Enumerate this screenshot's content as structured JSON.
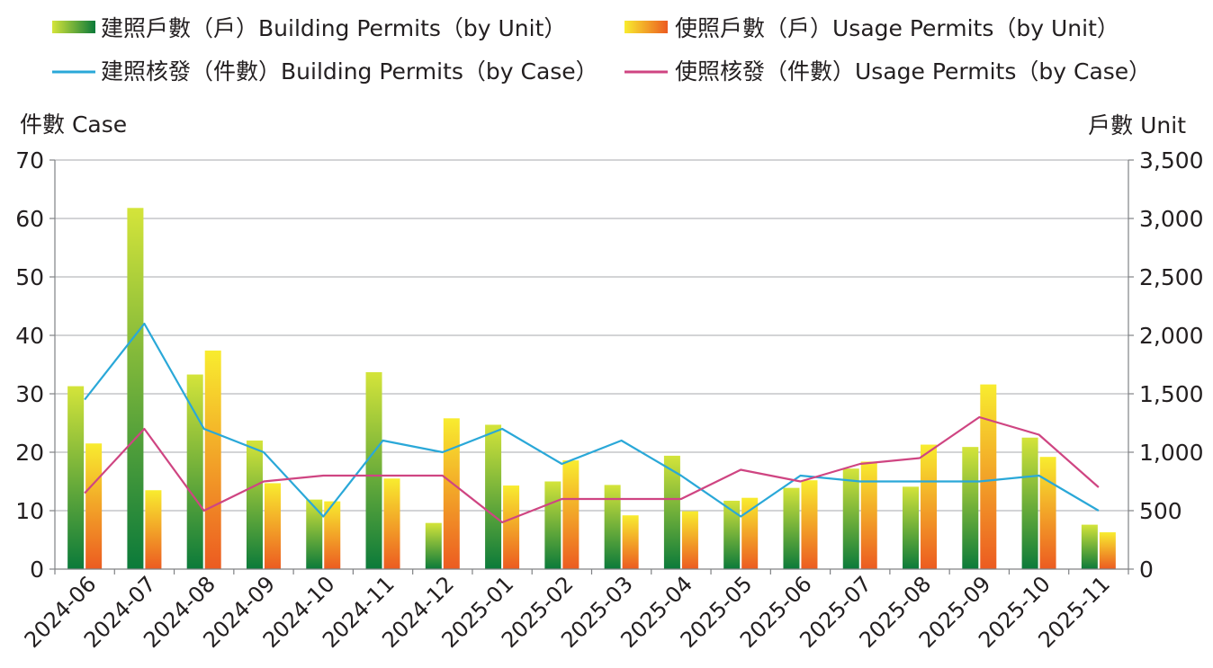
{
  "chart_data": {
    "type": "bar",
    "categories": [
      "2024-06",
      "2024-07",
      "2024-08",
      "2024-09",
      "2024-10",
      "2024-11",
      "2024-12",
      "2025-01",
      "2025-02",
      "2025-03",
      "2025-04",
      "2025-05",
      "2025-06",
      "2025-07",
      "2025-08",
      "2025-09",
      "2025-10",
      "2025-11"
    ],
    "y_left": {
      "title": "件數 Case",
      "min": 0,
      "max": 70,
      "ticks": [
        "0",
        "10",
        "20",
        "30",
        "40",
        "50",
        "60",
        "70"
      ]
    },
    "y_right": {
      "title": "戶數 Unit",
      "min": 0,
      "max": 3500,
      "ticks": [
        "0",
        "500",
        "1,000",
        "1,500",
        "2,000",
        "2,500",
        "3,000",
        "3,500"
      ]
    },
    "grid": true,
    "legend_position": "top",
    "series": [
      {
        "name": "建照戶數（戶）Building Permits（by Unit）",
        "kind": "bar",
        "axis": "right",
        "values": [
          1565,
          3090,
          1665,
          1100,
          595,
          1685,
          395,
          1235,
          750,
          720,
          970,
          585,
          695,
          860,
          705,
          1045,
          1125,
          380
        ],
        "gradient": [
          "#d4e43a",
          "#0b7a3a"
        ]
      },
      {
        "name": "使照戶數（戶）Usage Permits（by Unit）",
        "kind": "bar",
        "axis": "right",
        "values": [
          1075,
          675,
          1870,
          735,
          580,
          775,
          1290,
          715,
          930,
          460,
          495,
          610,
          760,
          920,
          1065,
          1580,
          960,
          315
        ],
        "gradient": [
          "#f8ec2f",
          "#ec5b21"
        ]
      },
      {
        "name": "建照核發（件數）Building Permits（by Case）",
        "kind": "line",
        "axis": "left",
        "color": "#2aa8d8",
        "values": [
          29,
          42,
          24,
          20,
          9,
          22,
          20,
          24,
          18,
          22,
          16,
          9,
          16,
          15,
          15,
          15,
          16,
          10
        ]
      },
      {
        "name": "使照核發（件數）Usage Permits（by Case）",
        "kind": "line",
        "axis": "left",
        "color": "#cf4582",
        "values": [
          13,
          24,
          10,
          15,
          16,
          16,
          16,
          8,
          12,
          12,
          12,
          17,
          15,
          18,
          19,
          26,
          23,
          14
        ]
      }
    ]
  }
}
